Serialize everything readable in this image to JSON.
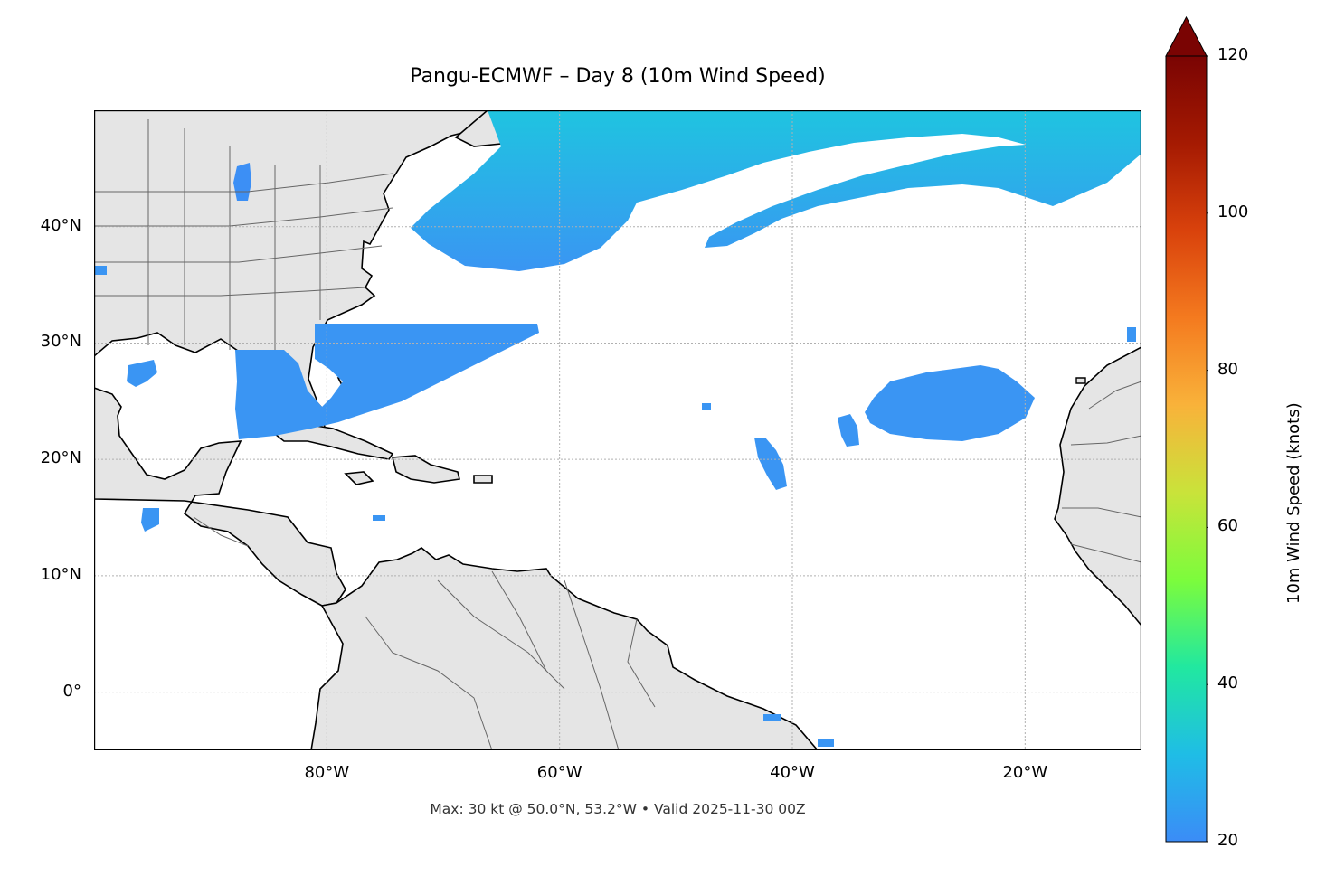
{
  "figure": {
    "title": "Pangu-ECMWF – Day 8 (10m Wind Speed)",
    "footer": "Max: 30 kt @ 50.0°N, 53.2°W • Valid 2025-11-30 00Z"
  },
  "map": {
    "extent": {
      "lon_min": -100,
      "lon_max": -10,
      "lat_min": -5,
      "lat_max": 50
    },
    "x_ticks": [
      {
        "lon": -80,
        "label": "80°W"
      },
      {
        "lon": -60,
        "label": "60°W"
      },
      {
        "lon": -40,
        "label": "40°W"
      },
      {
        "lon": -20,
        "label": "20°W"
      }
    ],
    "y_ticks": [
      {
        "lat": 40,
        "label": "40°N"
      },
      {
        "lat": 30,
        "label": "30°N"
      },
      {
        "lat": 20,
        "label": "20°N"
      },
      {
        "lat": 10,
        "label": "10°N"
      },
      {
        "lat": 0,
        "label": "0°"
      }
    ],
    "colors": {
      "land": "#e5e5e5",
      "ocean": "#ffffff",
      "coastline": "#000000",
      "borders": "#666666",
      "wind_low": "#3c8ff5",
      "wind_mid": "#22b8e6"
    }
  },
  "colorbar": {
    "label": "10m Wind Speed (knots)",
    "min": 20,
    "max": 120,
    "extend": "max",
    "ticks": [
      {
        "value": 120,
        "label": "120"
      },
      {
        "value": 100,
        "label": "100"
      },
      {
        "value": 80,
        "label": "80"
      },
      {
        "value": 60,
        "label": "60"
      },
      {
        "value": 40,
        "label": "40"
      },
      {
        "value": 20,
        "label": "20"
      }
    ],
    "colors": [
      "#3b8cf7",
      "#1fbde6",
      "#21e8a0",
      "#7cfc3c",
      "#c9e33a",
      "#f9b23a",
      "#f47a1f",
      "#d9420c",
      "#a51a02",
      "#7a0403"
    ]
  }
}
